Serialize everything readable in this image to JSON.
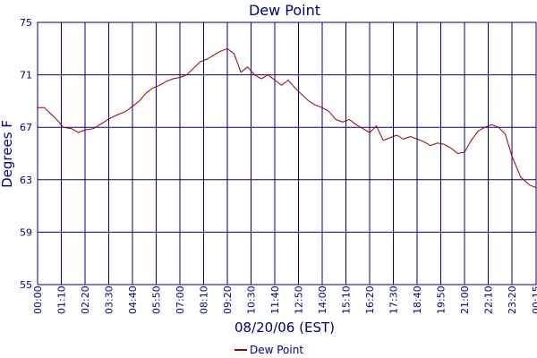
{
  "chart_data": {
    "type": "line",
    "title": "Dew Point",
    "xlabel": "08/20/06 (EST)",
    "ylabel": "Degrees F",
    "ylim": [
      55,
      75
    ],
    "yticks": [
      "55",
      "59",
      "63",
      "67",
      "71",
      "75"
    ],
    "xticks": [
      "00:00",
      "01:10",
      "02:20",
      "03:30",
      "04:40",
      "05:50",
      "07:00",
      "08:10",
      "09:20",
      "10:30",
      "11:40",
      "12:50",
      "14:00",
      "15:10",
      "16:20",
      "17:30",
      "18:40",
      "19:50",
      "21:00",
      "22:10",
      "23:20",
      "00:15"
    ],
    "grid": true,
    "legend_position": "bottom",
    "colors": {
      "line": "#990000",
      "axis": "#000080",
      "grid": "#000080"
    },
    "series": [
      {
        "name": "Dew Point",
        "x": [
          "00:00",
          "00:20",
          "00:40",
          "01:00",
          "01:15",
          "01:40",
          "02:00",
          "02:20",
          "02:45",
          "03:10",
          "03:35",
          "04:00",
          "04:20",
          "04:40",
          "05:00",
          "05:20",
          "05:40",
          "06:00",
          "06:20",
          "06:40",
          "07:00",
          "07:20",
          "07:40",
          "08:00",
          "08:20",
          "08:40",
          "09:00",
          "09:20",
          "09:40",
          "10:00",
          "10:20",
          "10:40",
          "11:00",
          "11:20",
          "11:40",
          "12:00",
          "12:20",
          "12:40",
          "13:00",
          "13:20",
          "13:40",
          "14:00",
          "14:20",
          "14:40",
          "15:00",
          "15:20",
          "15:40",
          "16:00",
          "16:20",
          "16:40",
          "17:00",
          "17:20",
          "17:40",
          "18:00",
          "18:20",
          "18:40",
          "19:00",
          "19:20",
          "19:40",
          "20:00",
          "20:20",
          "20:40",
          "21:00",
          "21:20",
          "21:40",
          "22:00",
          "22:20",
          "22:40",
          "23:00",
          "23:20",
          "23:40",
          "00:00",
          "00:15"
        ],
        "values": [
          68.5,
          68.5,
          68.0,
          67.5,
          67.0,
          66.9,
          66.6,
          66.8,
          66.9,
          67.3,
          67.7,
          68.0,
          68.2,
          68.6,
          69.0,
          69.6,
          70.0,
          70.2,
          70.5,
          70.7,
          70.8,
          71.0,
          71.5,
          72.0,
          72.2,
          72.5,
          72.8,
          73.0,
          72.6,
          71.2,
          71.6,
          71.0,
          70.7,
          71.0,
          70.6,
          70.2,
          70.6,
          70.0,
          69.5,
          69.0,
          68.7,
          68.5,
          68.2,
          67.6,
          67.4,
          67.6,
          67.2,
          66.9,
          66.6,
          67.1,
          66.0,
          66.2,
          66.4,
          66.1,
          66.3,
          66.1,
          65.9,
          65.6,
          65.8,
          65.7,
          65.4,
          65.0,
          65.1,
          66.0,
          66.7,
          67.0,
          67.2,
          67.0,
          66.5,
          64.8,
          63.2,
          62.6,
          62.4
        ]
      }
    ]
  }
}
